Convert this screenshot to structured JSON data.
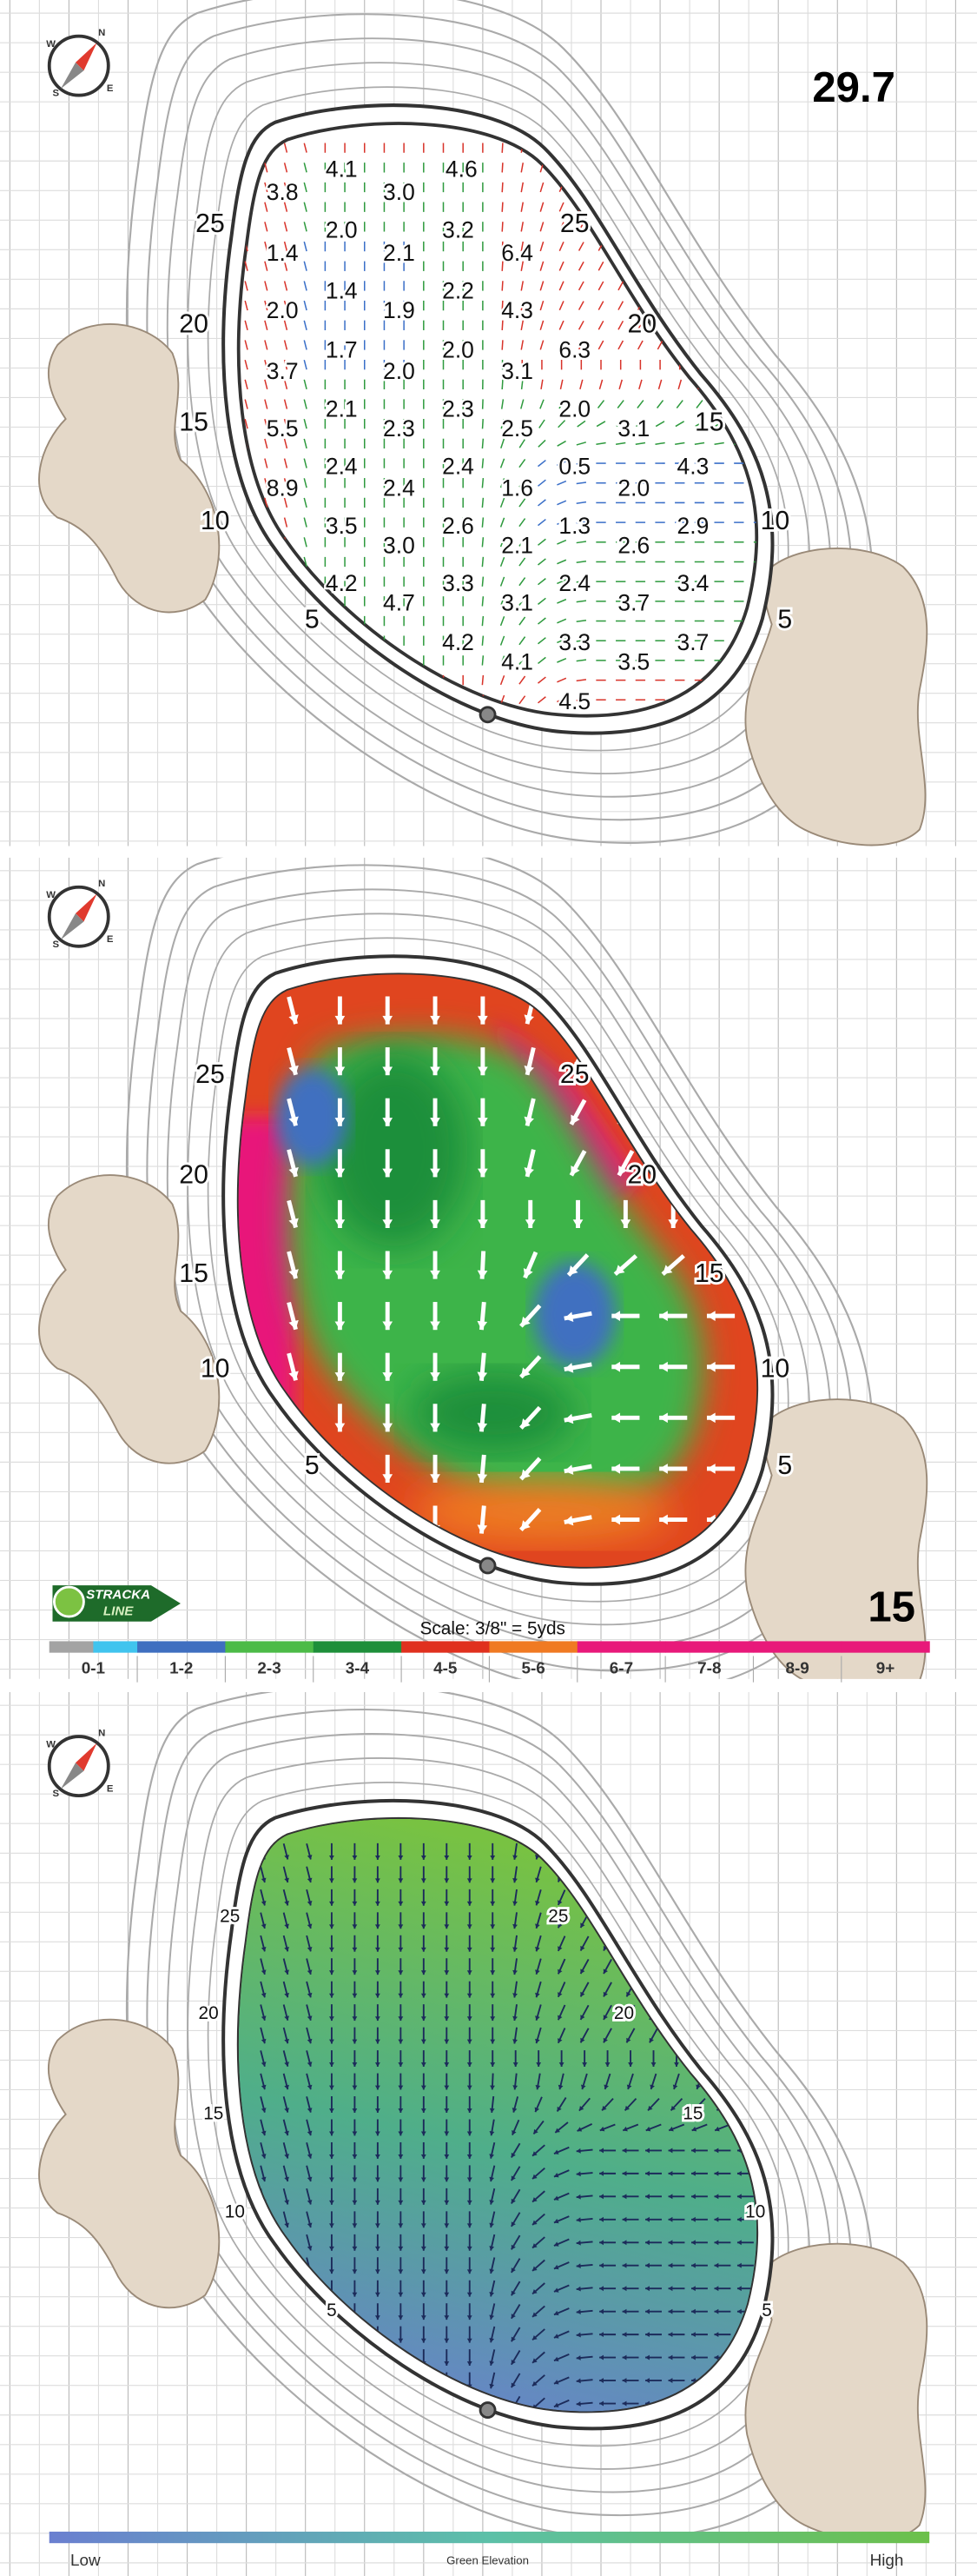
{
  "compass": {
    "n": "N",
    "s": "S",
    "w": "W",
    "e": "E"
  },
  "panels": [
    {
      "total": "29.7",
      "distances": [
        "25",
        "25",
        "20",
        "20",
        "15",
        "15",
        "10",
        "10",
        "5",
        "5"
      ],
      "slopes": [
        "4.1",
        "4.6",
        "3.8",
        "3.0",
        "2.0",
        "3.2",
        "1.4",
        "2.1",
        "6.4",
        "1.4",
        "2.2",
        "2.0",
        "1.9",
        "4.3",
        "1.7",
        "2.0",
        "6.3",
        "3.7",
        "2.0",
        "3.1",
        "2.1",
        "2.3",
        "2.0",
        "5.5",
        "2.3",
        "2.5",
        "3.1",
        "2.4",
        "2.4",
        "0.5",
        "4.3",
        "8.9",
        "2.4",
        "1.6",
        "2.0",
        "3.5",
        "2.6",
        "1.3",
        "2.9",
        "3.0",
        "2.1",
        "2.6",
        "4.2",
        "3.3",
        "2.4",
        "3.4",
        "4.7",
        "3.1",
        "3.7",
        "4.2",
        "3.3",
        "3.7",
        "4.1",
        "3.5",
        "4.5"
      ]
    },
    {
      "distances": [
        "25",
        "25",
        "20",
        "20",
        "15",
        "15",
        "10",
        "10",
        "5",
        "5"
      ],
      "logo": {
        "top": "STRACKA",
        "bottom": "LINE"
      },
      "scale": "Scale: 3/8\" = 5yds",
      "hole": "15",
      "legend": [
        {
          "label": "0-1",
          "colors": [
            "#a3a3a3",
            "#40c4ee"
          ]
        },
        {
          "label": "1-2",
          "colors": [
            "#3f6fc0"
          ]
        },
        {
          "label": "2-3",
          "colors": [
            "#4cbb47"
          ]
        },
        {
          "label": "3-4",
          "colors": [
            "#1e8f3a"
          ]
        },
        {
          "label": "4-5",
          "colors": [
            "#e0301e"
          ]
        },
        {
          "label": "5-6",
          "colors": [
            "#f07a22"
          ]
        },
        {
          "label": "6-7",
          "colors": [
            "#e8197a"
          ]
        },
        {
          "label": "7-8",
          "colors": [
            "#e8197a"
          ]
        },
        {
          "label": "8-9",
          "colors": [
            "#e8197a"
          ]
        },
        {
          "label": "9+",
          "colors": [
            "#e8197a"
          ]
        }
      ]
    },
    {
      "distances": [
        "25",
        "25",
        "20",
        "20",
        "15",
        "15",
        "10",
        "10",
        "5",
        "5"
      ],
      "legend": {
        "low": "Low",
        "title": "Green Elevation",
        "high": "High",
        "colors": [
          "#6a7fd0",
          "#5cc0a8",
          "#6cc04a"
        ]
      }
    }
  ]
}
